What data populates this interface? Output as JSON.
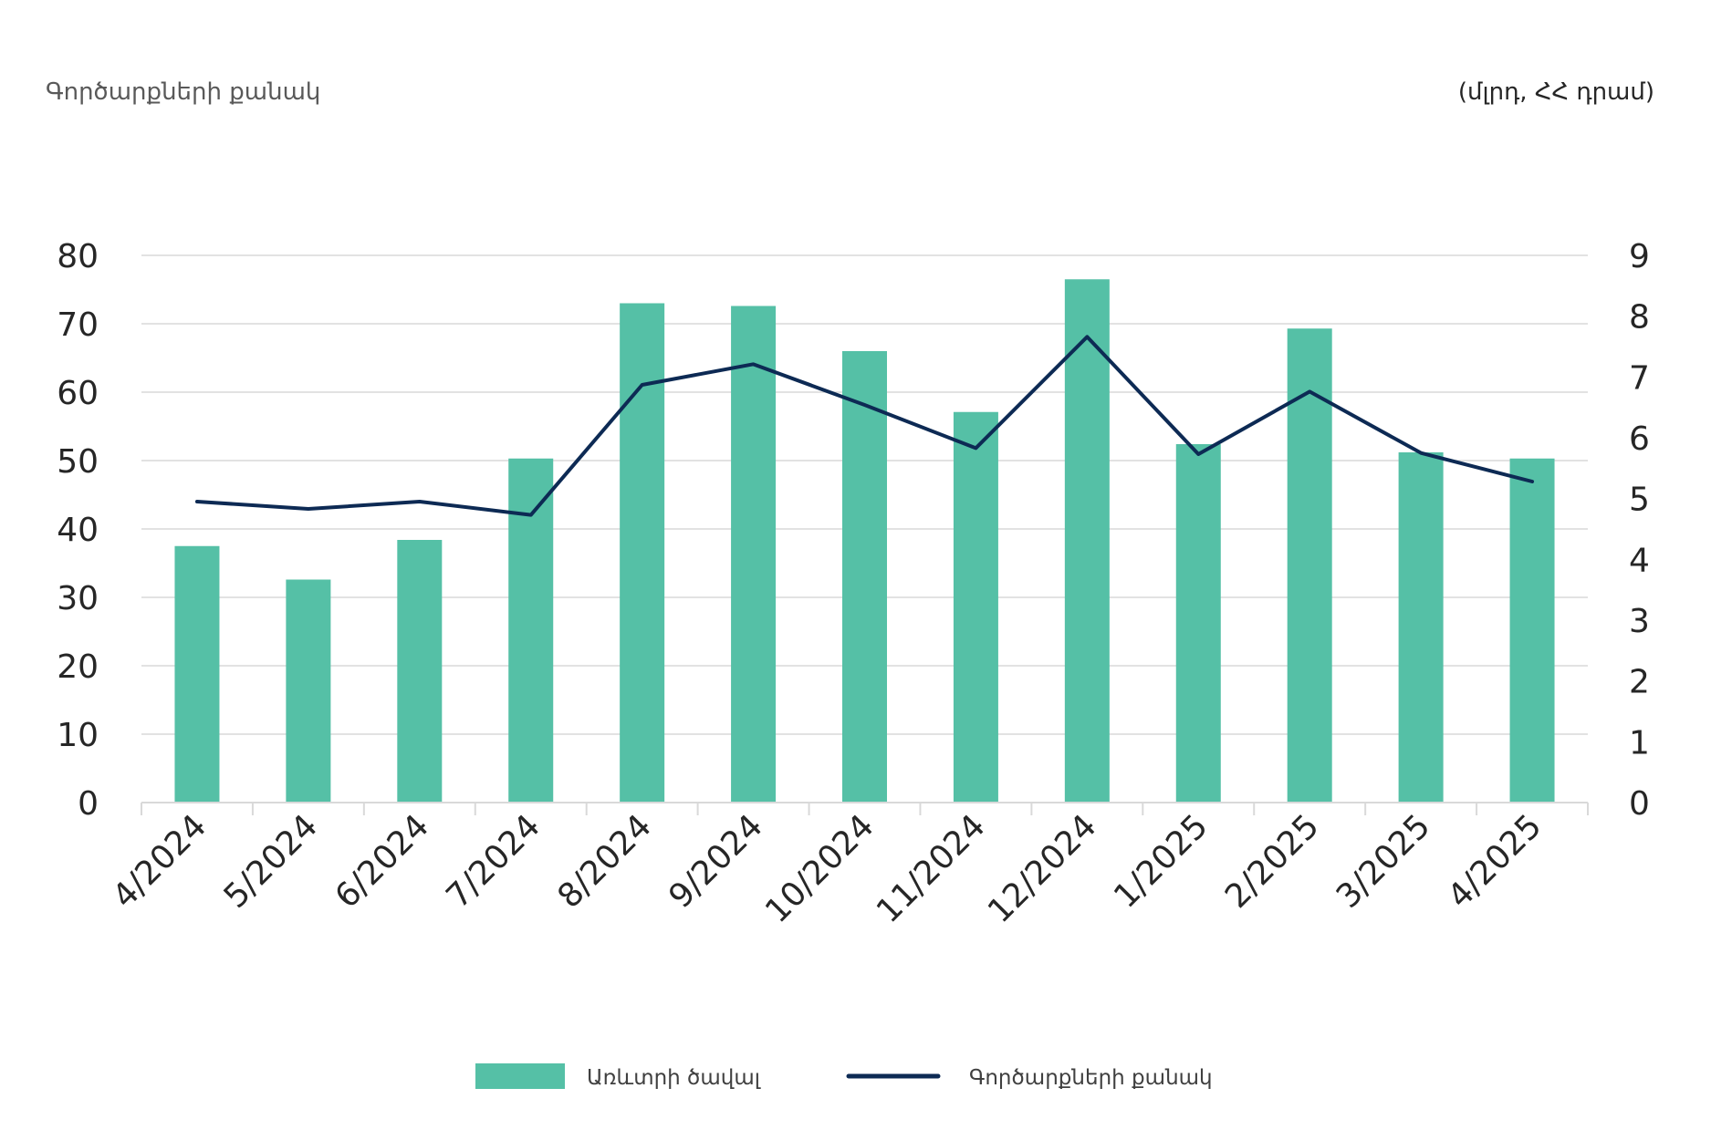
{
  "header": {
    "left_label": "Գործարքների քանակ",
    "right_label": "(մլրդ, ՀՀ դրամ)"
  },
  "legend": {
    "bars_label": "Առևտրի ծավալ",
    "line_label": "Գործարքների քանակ"
  },
  "colors": {
    "bar": "#55C0A6",
    "line": "#0D2A54",
    "grid": "#D9D9D9",
    "axis_text": "#262626"
  },
  "chart_data": {
    "type": "bar",
    "categories": [
      "4/2024",
      "5/2024",
      "6/2024",
      "7/2024",
      "8/2024",
      "9/2024",
      "10/2024",
      "11/2024",
      "12/2024",
      "1/2025",
      "2/2025",
      "3/2025",
      "4/2025"
    ],
    "series": [
      {
        "name": "Առևտրի ծավալ",
        "type": "bar",
        "axis": "left",
        "values": [
          37.5,
          32.6,
          38.4,
          50.3,
          73.0,
          72.6,
          66.0,
          57.1,
          76.5,
          52.4,
          69.3,
          51.2,
          50.3
        ]
      },
      {
        "name": "Գործարքների քանակ",
        "type": "line",
        "axis": "right",
        "values": [
          4.95,
          4.83,
          4.95,
          4.73,
          6.87,
          7.21,
          6.54,
          5.83,
          7.66,
          5.73,
          6.76,
          5.75,
          5.28
        ]
      }
    ],
    "left_axis": {
      "min": 0,
      "max": 80,
      "ticks": [
        0,
        10,
        20,
        30,
        40,
        50,
        60,
        70,
        80
      ]
    },
    "right_axis": {
      "min": 0,
      "max": 9,
      "ticks": [
        0,
        1,
        2,
        3,
        4,
        5,
        6,
        7,
        8,
        9
      ]
    },
    "grid": true,
    "legend_position": "bottom"
  }
}
